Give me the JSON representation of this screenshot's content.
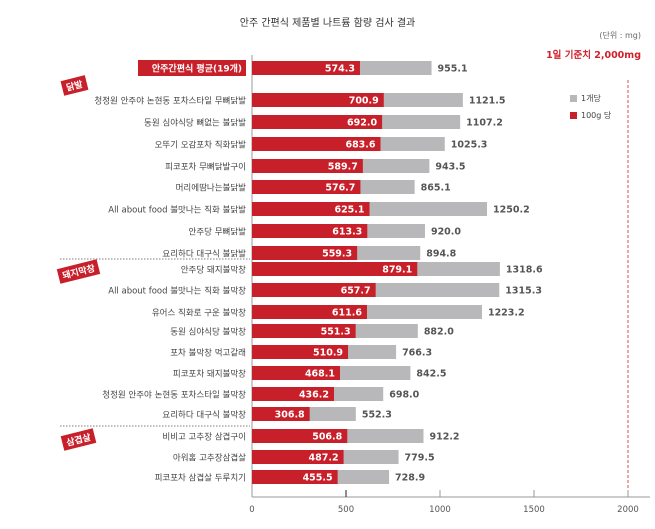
{
  "title": "안주 간편식 제품별 나트륨 함량 검사 결과",
  "unit": "(단위 : mg)",
  "limit_label": "1일 기준치 2,000mg",
  "colors": {
    "per100g": "#c8202a",
    "perItem": "#b8b8ba",
    "accent": "#d0202a"
  },
  "chart_data": {
    "type": "bar",
    "title": "안주 간편식 제품별 나트륨 함량 검사 결과",
    "xlim": [
      0,
      2000
    ],
    "xticks": [
      "0",
      "500",
      "1000",
      "1500",
      "2000"
    ],
    "reference_line": 2000,
    "legend": {
      "position": "top-right",
      "entries": [
        "1개당",
        "100g 당"
      ]
    },
    "groups": [
      "닭발",
      "돼지막창",
      "삼겹살"
    ],
    "categories": [
      "안주간편식 평균(19개)",
      "청정원 안주야 논현동 포차스타일 무뼈닭발",
      "동원 심야식당 뼈없는 불닭발",
      "오뚜기 오감포차 직화닭발",
      "피코포차 무뼈닭발구이",
      "머리에땀나는불닭발",
      "All about food 불맛나는 직화 불닭발",
      "안주당 무뼈닭발",
      "요리하다 대구식 불닭발",
      "안주당 돼지불막창",
      "All about food 불맛나는 직화 불막창",
      "유어스 직화로 구운 불막창",
      "동원 심야식당 불막창",
      "포차 불막창 먹고갈래",
      "피코포차 돼지불막창",
      "청정원 안주야 논현동 포차스타일 불막창",
      "요리하다 대구식 불막창",
      "비비고 고추장 삼겹구이",
      "아워홈 고추장삼겹살",
      "피코포차 삼겹살 두루치기"
    ],
    "category_group": [
      "avg",
      "닭발",
      "닭발",
      "닭발",
      "닭발",
      "닭발",
      "닭발",
      "닭발",
      "닭발",
      "돼지막창",
      "돼지막창",
      "돼지막창",
      "돼지막창",
      "돼지막창",
      "돼지막창",
      "돼지막창",
      "돼지막창",
      "삼겹살",
      "삼겹살",
      "삼겹살"
    ],
    "series": [
      {
        "name": "100g 당",
        "values": [
          574.3,
          700.9,
          692.0,
          683.6,
          589.7,
          576.7,
          625.1,
          613.3,
          559.3,
          879.1,
          657.7,
          611.6,
          551.3,
          510.9,
          468.1,
          436.2,
          306.8,
          506.8,
          487.2,
          455.5
        ]
      },
      {
        "name": "1개당",
        "values": [
          955.1,
          1121.5,
          1107.2,
          1025.3,
          943.5,
          865.1,
          1250.2,
          920.0,
          894.8,
          1318.6,
          1315.3,
          1223.2,
          882.0,
          766.3,
          842.5,
          698.0,
          552.3,
          912.2,
          779.5,
          728.9
        ]
      }
    ]
  }
}
